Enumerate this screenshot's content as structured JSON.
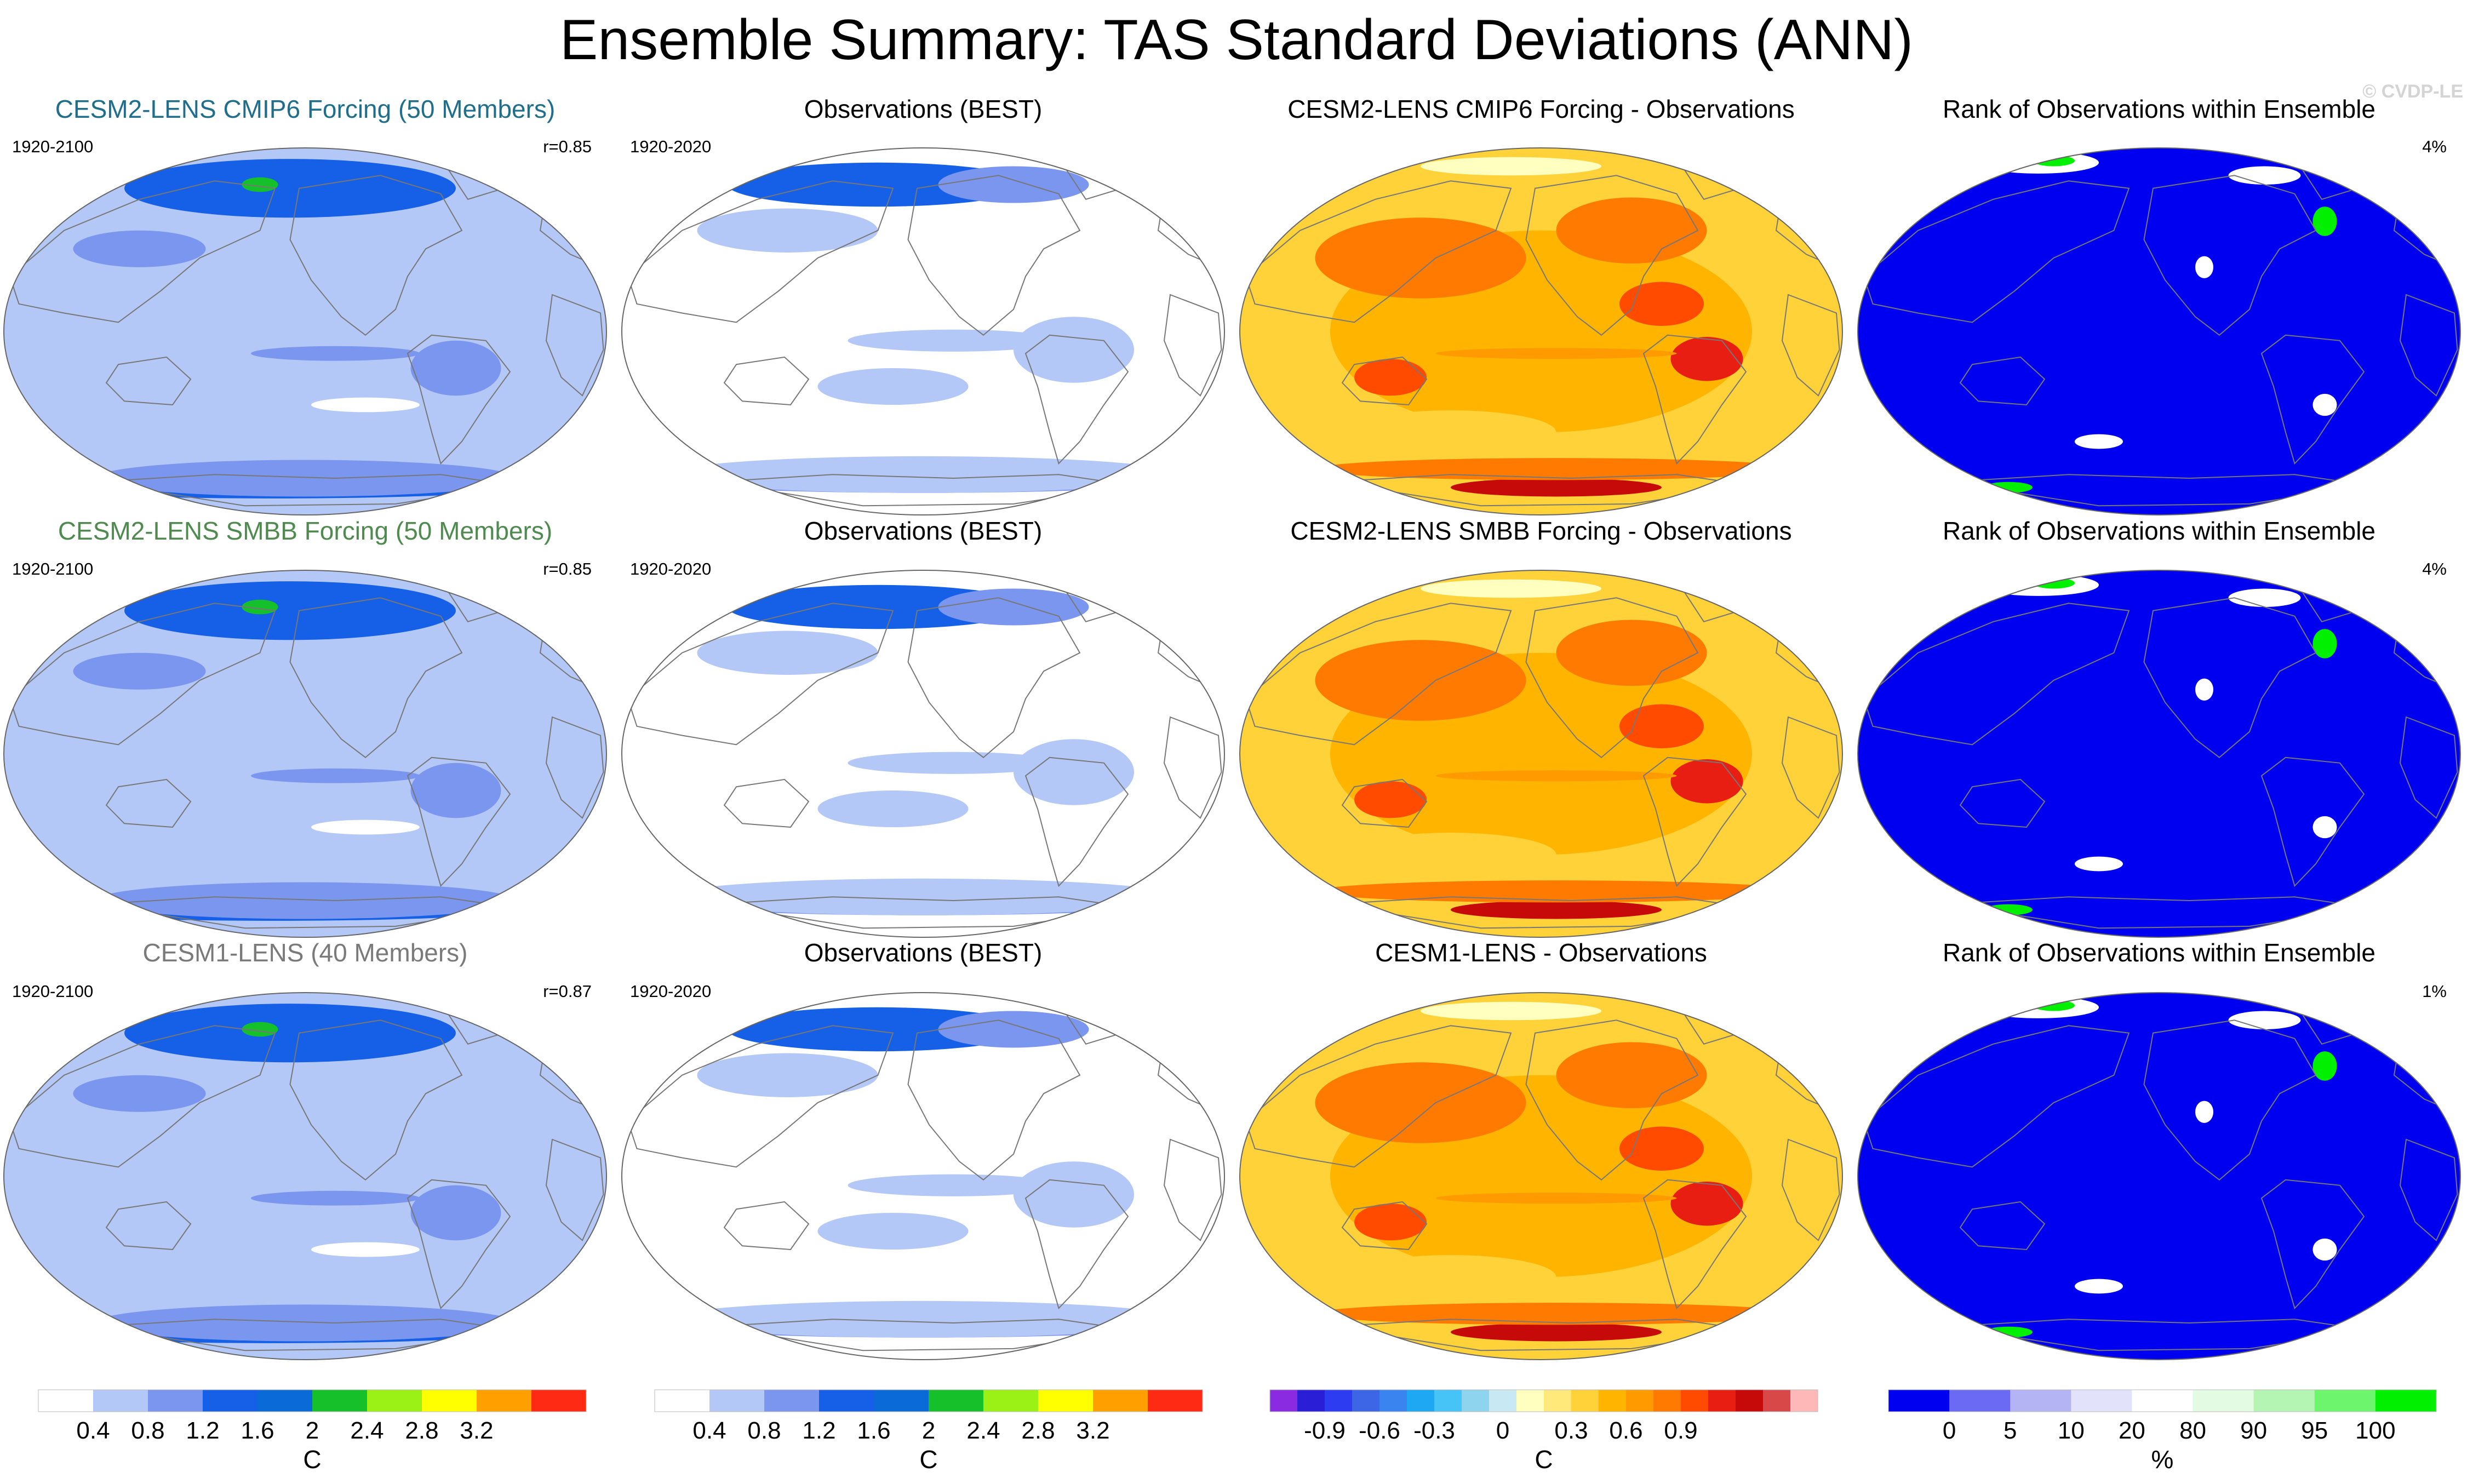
{
  "title": "Ensemble Summary: TAS Standard Deviations (ANN)",
  "watermark": "© CVDP-LE",
  "chart_data": {
    "type": "map-panels",
    "variable": "TAS Standard Deviations",
    "season": "ANN",
    "rows": [
      {
        "model": {
          "title": "CESM2-LENS CMIP6 Forcing (50 Members)",
          "period": "1920-2100",
          "stat": "r=0.85",
          "title_color": "#1f6e8c"
        },
        "obs": {
          "title": "Observations (BEST)",
          "period": "1920-2020"
        },
        "diff": {
          "title": "CESM2-LENS CMIP6 Forcing - Observations"
        },
        "rank": {
          "title": "Rank of Observations within Ensemble",
          "stat": "4%"
        }
      },
      {
        "model": {
          "title": "CESM2-LENS SMBB Forcing (50 Members)",
          "period": "1920-2100",
          "stat": "r=0.85",
          "title_color": "#4f8a4f"
        },
        "obs": {
          "title": "Observations (BEST)",
          "period": "1920-2020"
        },
        "diff": {
          "title": "CESM2-LENS SMBB Forcing - Observations"
        },
        "rank": {
          "title": "Rank of Observations within Ensemble",
          "stat": "4%"
        }
      },
      {
        "model": {
          "title": "CESM1-LENS (40 Members)",
          "period": "1920-2100",
          "stat": "r=0.87",
          "title_color": "#7a7a7a"
        },
        "obs": {
          "title": "Observations (BEST)",
          "period": "1920-2020"
        },
        "diff": {
          "title": "CESM1-LENS - Observations"
        },
        "rank": {
          "title": "Rank of Observations within Ensemble",
          "stat": "1%"
        }
      }
    ],
    "colorbars": [
      {
        "name": "stddev-model",
        "units": "C",
        "levels": [
          0.4,
          0.8,
          1.2,
          1.6,
          2,
          2.4,
          2.8,
          3.2
        ],
        "tick_labels": [
          "0.4",
          "0.8",
          "1.2",
          "1.6",
          "2",
          "2.4",
          "2.8",
          "3.2"
        ],
        "colors": [
          "#ffffff",
          "#b4c8f7",
          "#7b96ee",
          "#1560e6",
          "#0a6bd8",
          "#15c02a",
          "#9bf016",
          "#ffff00",
          "#ffa000",
          "#ff2a14"
        ]
      },
      {
        "name": "stddev-obs",
        "units": "C",
        "levels": [
          0.4,
          0.8,
          1.2,
          1.6,
          2,
          2.4,
          2.8,
          3.2
        ],
        "tick_labels": [
          "0.4",
          "0.8",
          "1.2",
          "1.6",
          "2",
          "2.4",
          "2.8",
          "3.2"
        ],
        "colors": [
          "#ffffff",
          "#b4c8f7",
          "#7b96ee",
          "#1560e6",
          "#0a6bd8",
          "#15c02a",
          "#9bf016",
          "#ffff00",
          "#ffa000",
          "#ff2a14"
        ]
      },
      {
        "name": "difference",
        "units": "C",
        "levels": [
          -1.05,
          -0.9,
          -0.75,
          -0.6,
          -0.45,
          -0.3,
          -0.15,
          -0.05,
          0.05,
          0.15,
          0.3,
          0.45,
          0.6,
          0.75,
          0.9,
          1.05
        ],
        "tick_labels": [
          "-0.9",
          "-0.6",
          "-0.3",
          "0",
          "0.3",
          "0.6",
          "0.9"
        ],
        "tick_values": [
          -0.9,
          -0.6,
          -0.3,
          0,
          0.3,
          0.6,
          0.9
        ],
        "colors": [
          "#8a2be2",
          "#2a1fd6",
          "#2d3cf0",
          "#3c66e6",
          "#3a84f0",
          "#1ea7f2",
          "#46c3f7",
          "#8fd4ee",
          "#c8e8f3",
          "#ffffc0",
          "#ffe97a",
          "#ffd23a",
          "#ffb400",
          "#ff9a00",
          "#ff7a00",
          "#ff4b00",
          "#e81e12",
          "#c60a0a",
          "#d84848",
          "#ffb8b8"
        ]
      },
      {
        "name": "rank",
        "units": "%",
        "levels": [
          0,
          5,
          10,
          20,
          80,
          90,
          95,
          100
        ],
        "tick_labels": [
          "0",
          "5",
          "10",
          "20",
          "80",
          "90",
          "95",
          "100"
        ],
        "colors": [
          "#0000f0",
          "#6a6af5",
          "#b4b4f5",
          "#e2e2fb",
          "#ffffff",
          "#e2fbe2",
          "#b4f5b4",
          "#6ef56e",
          "#00f000"
        ]
      }
    ]
  }
}
